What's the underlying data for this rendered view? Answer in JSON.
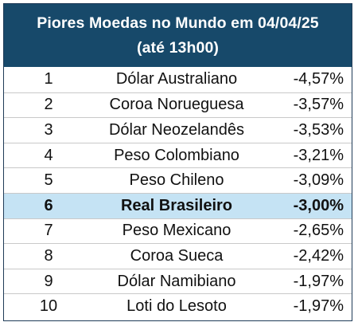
{
  "header": {
    "title_line1": "Piores Moedas no Mundo em 04/04/25",
    "title_line2": "(até 13h00)"
  },
  "colors": {
    "header_bg": "#17496a",
    "header_text": "#ffffff",
    "highlight_bg": "#c5e3f4",
    "border": "#1f3b57"
  },
  "chart_data": {
    "type": "table",
    "title": "Piores Moedas no Mundo em 04/04/25",
    "subtitle": "(até 13h00)",
    "highlighted_rank": "6",
    "rows": [
      {
        "rank": "1",
        "currency": "Dólar Australiano",
        "change": "-4,57%"
      },
      {
        "rank": "2",
        "currency": "Coroa Norueguesa",
        "change": "-3,57%"
      },
      {
        "rank": "3",
        "currency": "Dólar Neozelandês",
        "change": "-3,53%"
      },
      {
        "rank": "4",
        "currency": "Peso Colombiano",
        "change": "-3,21%"
      },
      {
        "rank": "5",
        "currency": "Peso Chileno",
        "change": "-3,09%"
      },
      {
        "rank": "6",
        "currency": "Real Brasileiro",
        "change": "-3,00%"
      },
      {
        "rank": "7",
        "currency": "Peso Mexicano",
        "change": "-2,65%"
      },
      {
        "rank": "8",
        "currency": "Coroa Sueca",
        "change": "-2,42%"
      },
      {
        "rank": "9",
        "currency": "Dólar Namibiano",
        "change": "-1,97%"
      },
      {
        "rank": "10",
        "currency": "Loti do Lesoto",
        "change": "-1,97%"
      }
    ]
  }
}
